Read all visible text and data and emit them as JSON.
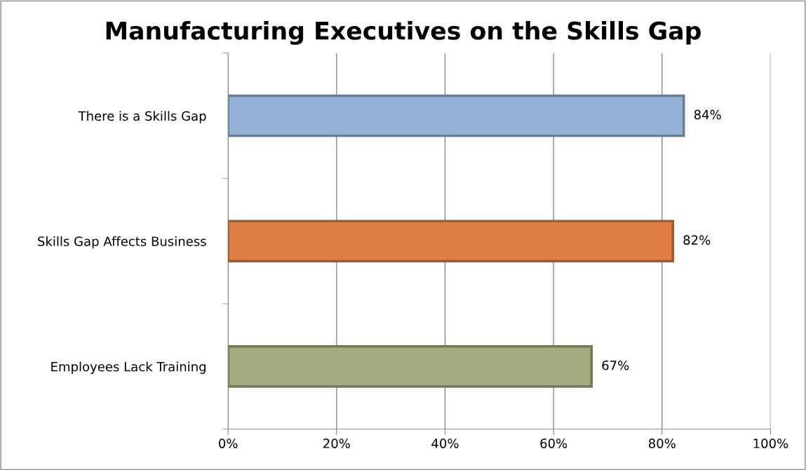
{
  "chart_data": {
    "type": "bar",
    "orientation": "horizontal",
    "title": "Manufacturing Executives on the Skills Gap",
    "categories": [
      "There is a Skills Gap",
      "Skills Gap Affects Business",
      "Employees Lack Training"
    ],
    "values": [
      84,
      82,
      67
    ],
    "colors": [
      "#95b3d7",
      "#e07f45",
      "#a3ab7f"
    ],
    "value_labels": [
      "84%",
      "82%",
      "67%"
    ],
    "xlim": [
      0,
      100
    ],
    "xticks": [
      {
        "value": 0,
        "label": "0%"
      },
      {
        "value": 20,
        "label": "20%"
      },
      {
        "value": 40,
        "label": "40%"
      },
      {
        "value": 60,
        "label": "60%"
      },
      {
        "value": 80,
        "label": "80%"
      },
      {
        "value": 100,
        "label": "100%"
      }
    ],
    "grid": "x",
    "legend": false
  }
}
